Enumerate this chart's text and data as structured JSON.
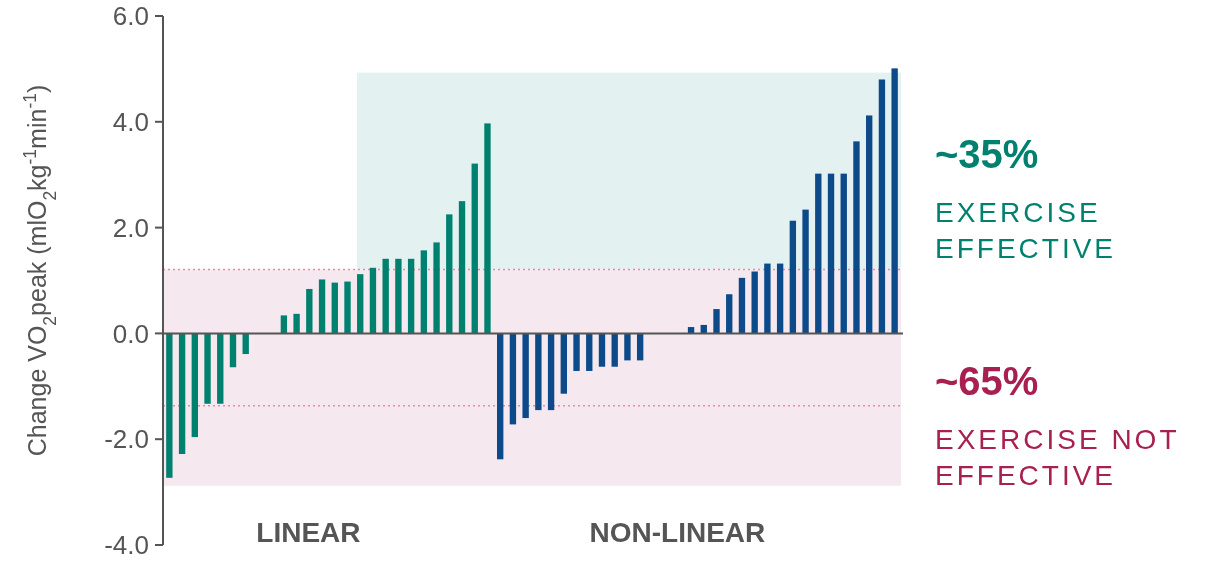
{
  "chart_data": {
    "type": "bar",
    "ylabel": "Change VO$_{2}$peak (mlO$_{2}$kg$^{-1}$min$^{-1}$)",
    "categories": [
      null,
      null,
      null,
      null,
      null,
      null,
      null,
      null,
      null,
      null,
      null,
      null,
      null,
      null,
      null,
      null,
      null,
      null,
      null,
      null,
      null,
      null,
      null,
      null,
      null,
      null,
      null,
      null,
      null,
      null,
      null,
      null,
      null,
      null,
      null,
      null,
      null,
      null,
      null,
      null,
      null,
      null,
      null,
      null,
      null,
      null,
      null,
      null,
      null,
      null,
      null,
      null,
      null,
      null,
      null,
      null,
      null,
      null
    ],
    "series": [
      {
        "color": "#00806f",
        "values": [
          -2.73,
          -2.28,
          -1.96,
          -1.33,
          -1.33,
          -0.64,
          -0.39,
          null,
          null,
          0.34,
          0.37,
          0.84,
          1.02,
          0.96,
          0.98,
          1.12,
          1.24,
          1.41,
          1.41,
          1.41,
          1.57,
          1.72,
          2.25,
          2.5,
          3.21,
          3.97,
          null,
          null,
          null,
          null,
          null,
          null,
          null,
          null,
          null,
          null,
          null,
          null,
          null,
          null,
          null,
          null,
          null,
          null,
          null,
          null,
          null,
          null,
          null,
          null,
          null,
          null,
          null,
          null,
          null,
          null,
          null,
          null
        ]
      },
      {
        "color": "#0d4a8a",
        "values": [
          null,
          null,
          null,
          null,
          null,
          null,
          null,
          null,
          null,
          null,
          null,
          null,
          null,
          null,
          null,
          null,
          null,
          null,
          null,
          null,
          null,
          null,
          null,
          null,
          null,
          null,
          -2.38,
          -1.72,
          -1.6,
          -1.45,
          -1.45,
          -1.14,
          -0.71,
          -0.71,
          -0.63,
          -0.63,
          -0.51,
          -0.51,
          null,
          null,
          null,
          0.12,
          0.16,
          0.46,
          0.74,
          1.05,
          1.17,
          1.32,
          1.32,
          2.13,
          2.34,
          3.02,
          3.02,
          3.02,
          3.63,
          4.12,
          4.8,
          5.01
        ]
      }
    ],
    "ylim": [
      -4,
      6
    ],
    "yticks": [
      {
        "value": -4,
        "label": "-4.0"
      },
      {
        "value": -2,
        "label": "-2.0"
      },
      {
        "value": 0,
        "label": "0.0"
      },
      {
        "value": 2,
        "label": "2.0"
      },
      {
        "value": 4,
        "label": "4.0"
      },
      {
        "value": 6,
        "label": "6.0"
      }
    ],
    "bands": [
      {
        "axis": "y",
        "from": -2.88,
        "to": 1.21,
        "color": "#f5e8ee"
      },
      {
        "axis": "y",
        "from": 1.21,
        "to": 4.93,
        "color": "#e4f1f1"
      }
    ],
    "ref_lines": [
      {
        "axis": "y",
        "value": 1.21,
        "color": "#e88aa8",
        "line_style": "dotted"
      },
      {
        "axis": "y",
        "value": -1.37,
        "color": "#e88aa8",
        "line_style": "dotted"
      }
    ],
    "annotations": [
      "~35%",
      "EXERCISE EFFECTIVE",
      "~65%",
      "EXERCISE NOT EFFECTIVE",
      "LINEAR",
      "NON-LINEAR"
    ]
  }
}
